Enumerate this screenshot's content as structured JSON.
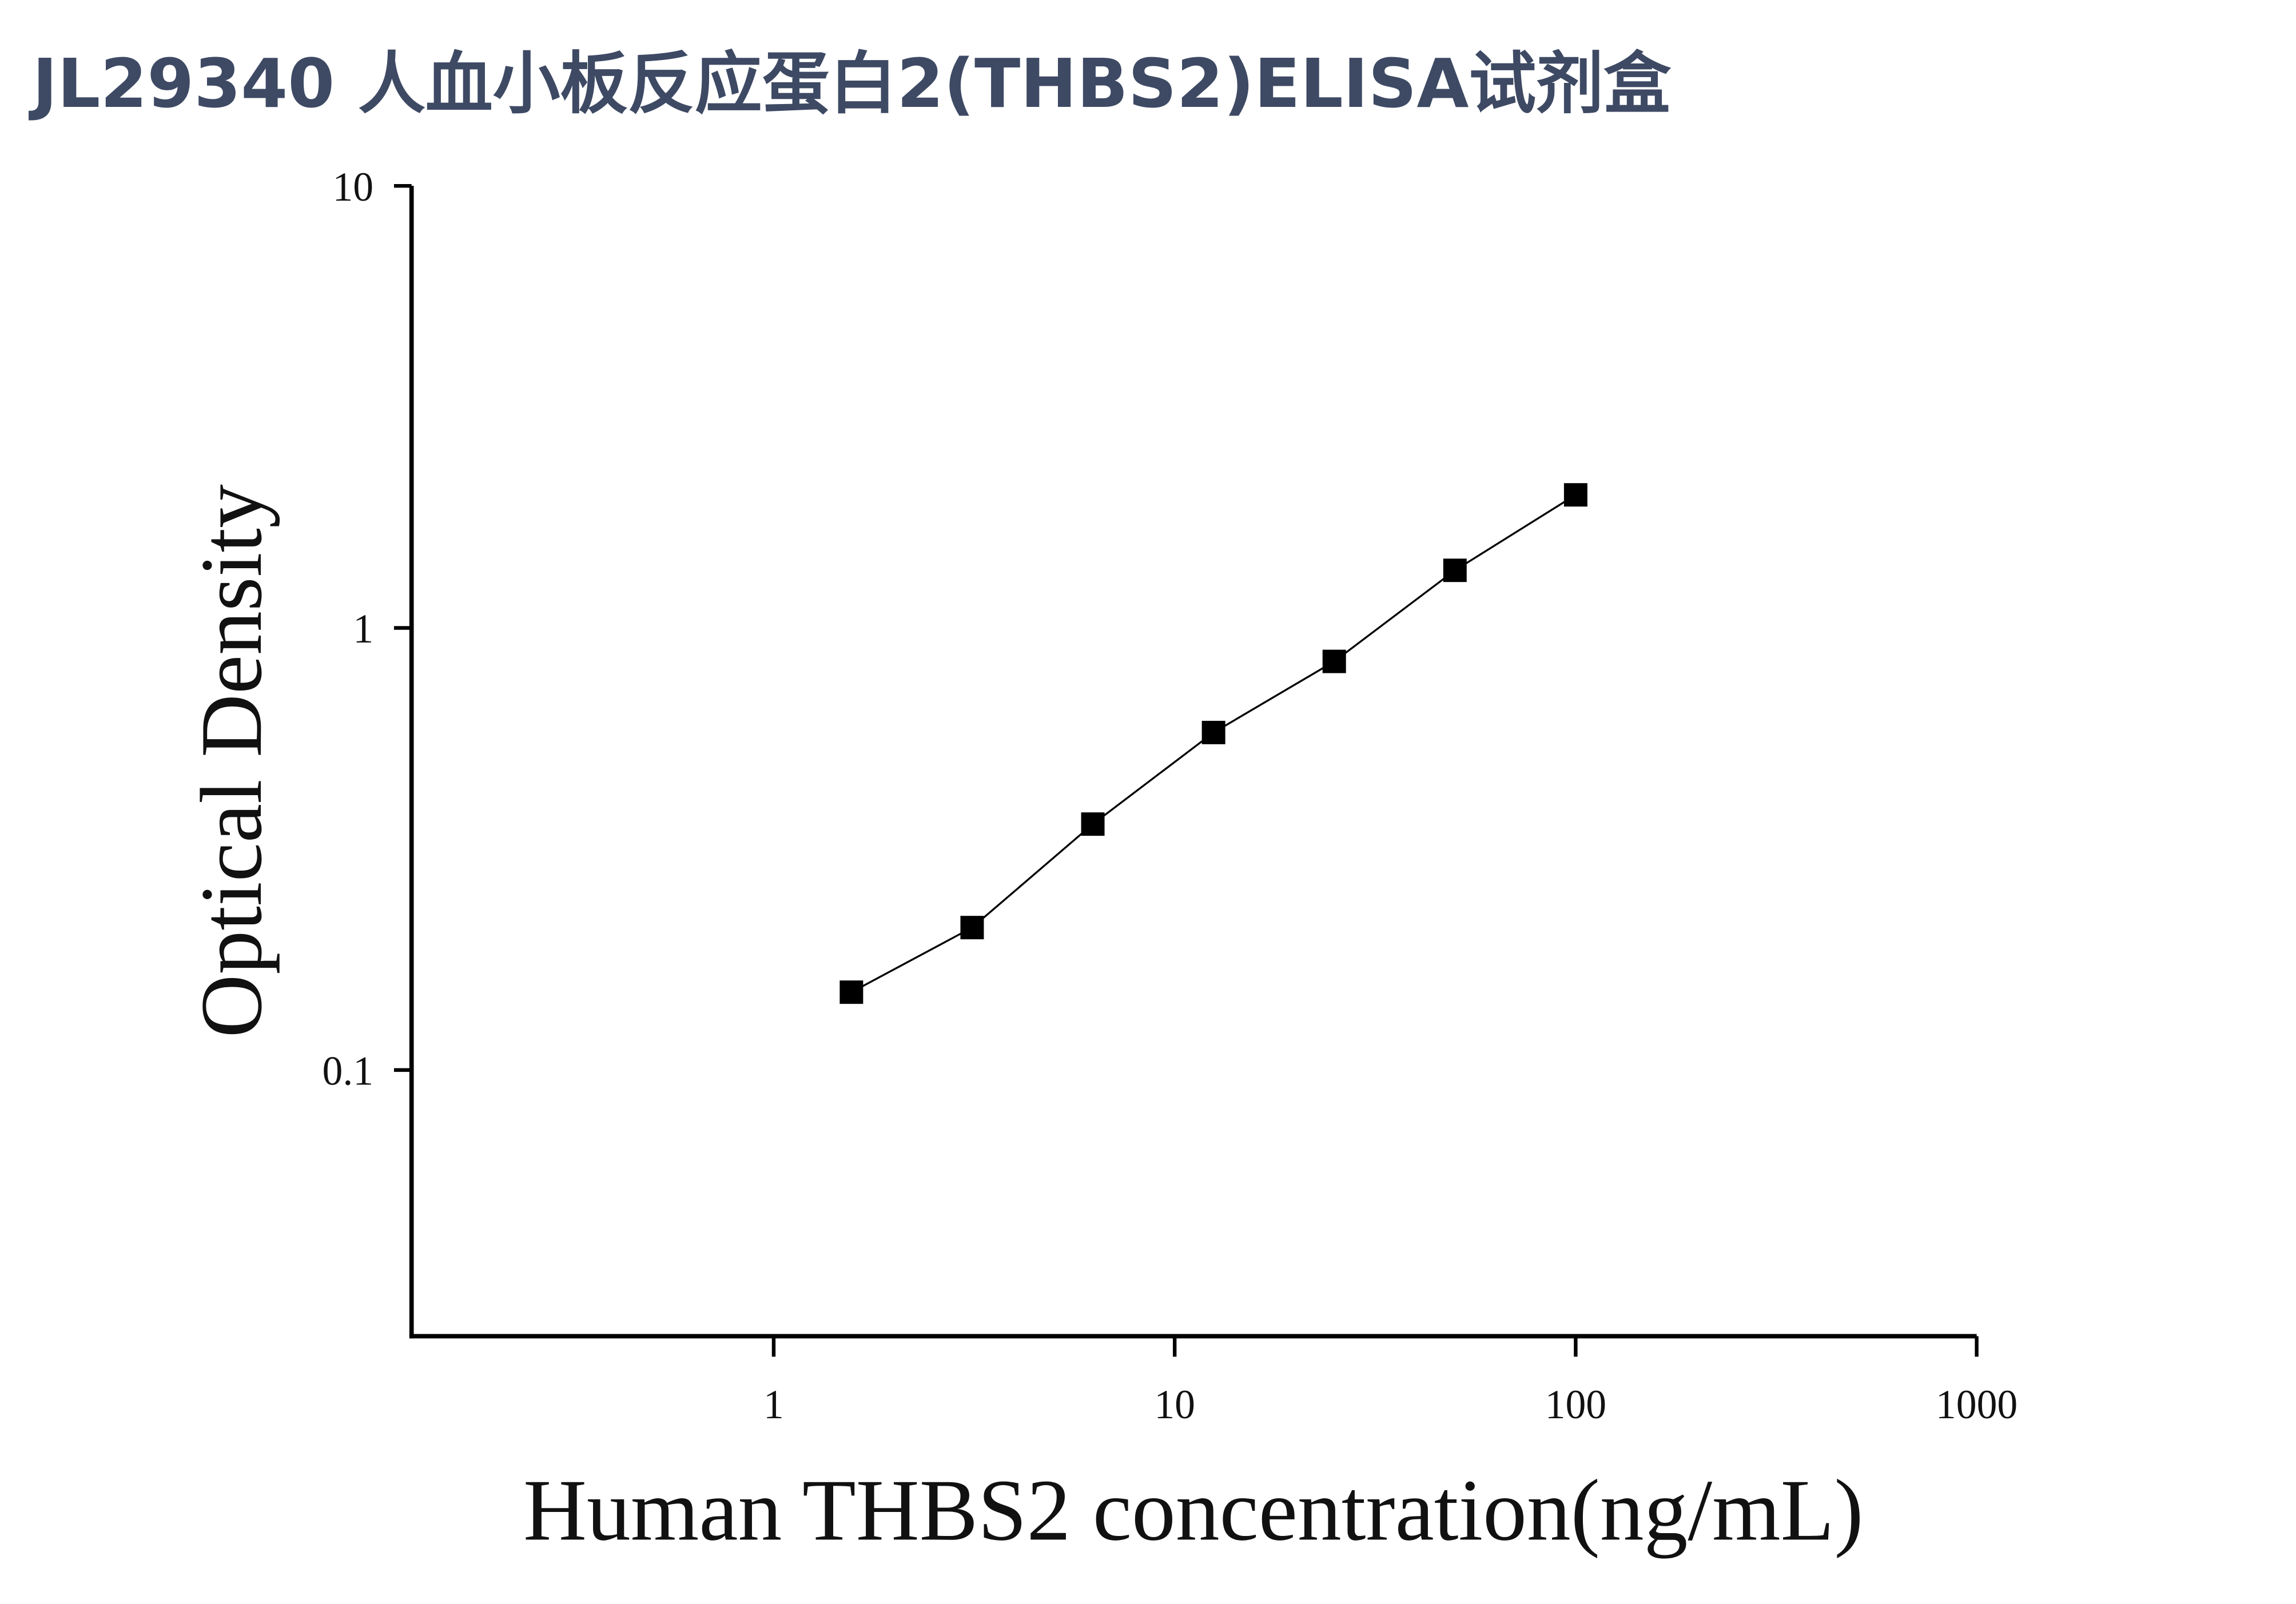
{
  "chart_data": {
    "type": "scatter",
    "title": "JL29340 人血小板反应蛋白2(THBS2)ELISA试剂盒",
    "x_label": "Human THBS2 concentration(ng/mL)",
    "y_label": "Optical Density",
    "x_scale": "log",
    "y_scale": "log",
    "xlim": [
      0.125,
      1000
    ],
    "xticks": [
      1,
      10,
      100,
      1000
    ],
    "ylim": [
      0.025,
      10
    ],
    "yticks": [
      0.1,
      1,
      10
    ],
    "grid": false,
    "series": [
      {
        "color": "#000000",
        "x": [
          1.5625,
          3.125,
          6.25,
          12.5,
          25,
          50,
          100
        ],
        "values": [
          0.15,
          0.21,
          0.36,
          0.58,
          0.84,
          1.35,
          2.0
        ]
      }
    ]
  }
}
